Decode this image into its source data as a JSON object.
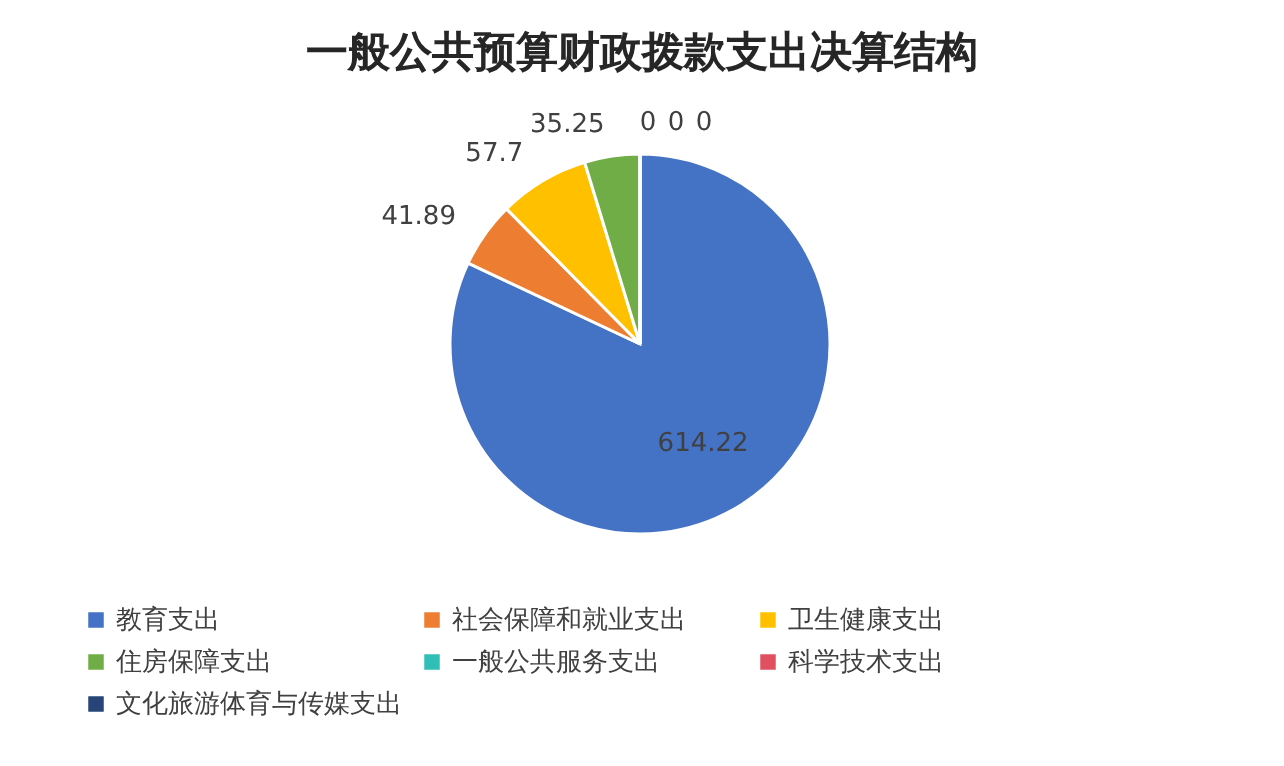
{
  "chart_data": {
    "type": "pie",
    "title": "一般公共预算财政拨款支出决算结构",
    "categories": [
      "教育支出",
      "社会保障和就业支出",
      "卫生健康支出",
      "住房保障支出",
      "一般公共服务支出",
      "科学技术支出",
      "文化旅游体育与传媒支出"
    ],
    "values": [
      614.22,
      41.89,
      57.7,
      35.25,
      0,
      0,
      0
    ],
    "value_labels": [
      "614.22",
      "41.89",
      "57.7",
      "35.25",
      "0",
      "0",
      "0"
    ],
    "colors": [
      "#4472c4",
      "#ed7d31",
      "#ffc000",
      "#70ad47",
      "#2fbfb6",
      "#e0505e",
      "#264478"
    ],
    "legend": "bottom"
  }
}
